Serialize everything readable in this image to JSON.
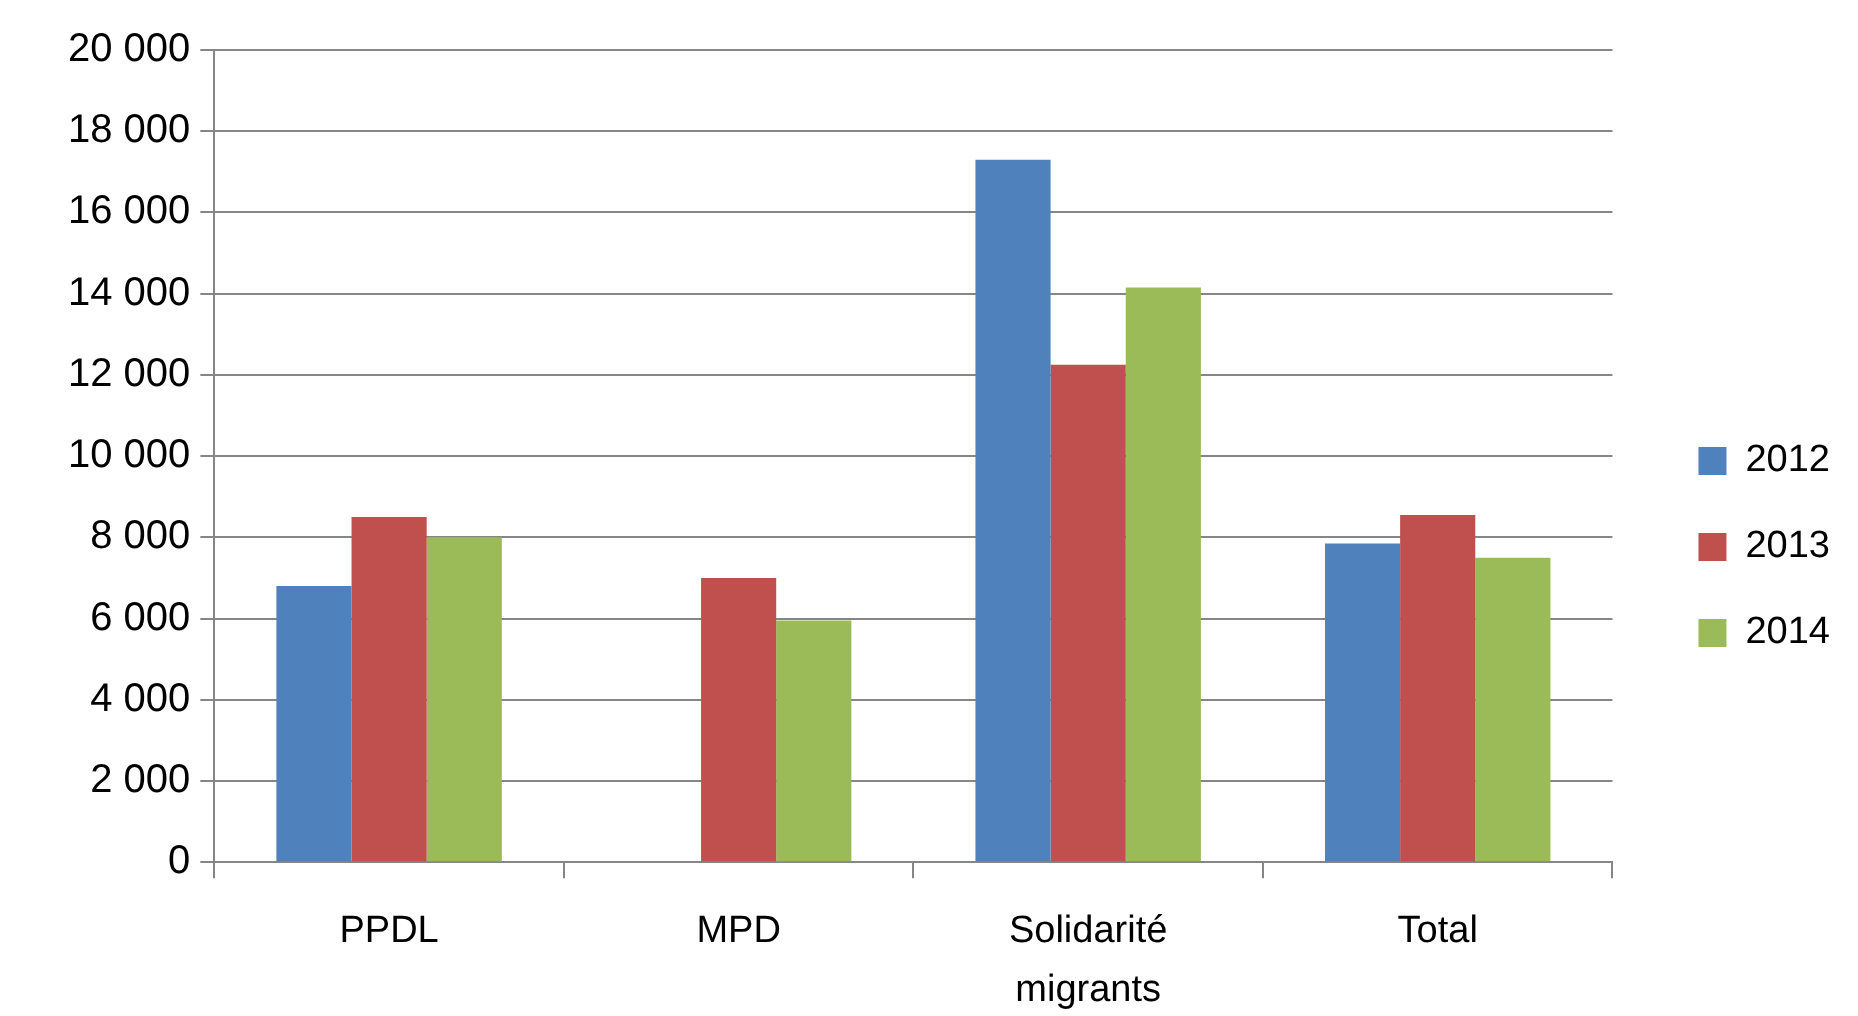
{
  "chart_data": {
    "type": "bar",
    "categories": [
      "PPDL",
      "MPD",
      "Solidarité migrants",
      "Total"
    ],
    "series": [
      {
        "name": "2012",
        "color": "#4f81bd",
        "values": [
          6800,
          null,
          17300,
          7850
        ]
      },
      {
        "name": "2013",
        "color": "#c0504d",
        "values": [
          8500,
          7000,
          12250,
          8550
        ]
      },
      {
        "name": "2014",
        "color": "#9bbb59",
        "values": [
          8000,
          5950,
          14150,
          7500
        ]
      }
    ],
    "ylim": [
      0,
      20000
    ],
    "yticks": [
      0,
      {
        "value": 2000,
        "label": "2 000"
      },
      {
        "value": 4000,
        "label": "4 000"
      },
      {
        "value": 6000,
        "label": "6 000"
      },
      {
        "value": 8000,
        "label": "8 000"
      },
      {
        "value": 10000,
        "label": "10 000"
      },
      {
        "value": 12000,
        "label": "12 000"
      },
      {
        "value": 14000,
        "label": "14 000"
      },
      {
        "value": 16000,
        "label": "16 000"
      },
      {
        "value": 18000,
        "label": "18 000"
      },
      {
        "value": 20000,
        "label": "20 000"
      }
    ],
    "grid": "y",
    "legend": "right"
  }
}
